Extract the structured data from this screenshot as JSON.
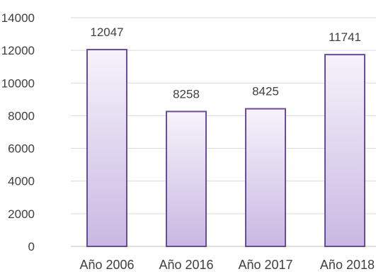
{
  "chart_data": {
    "type": "bar",
    "categories": [
      "Año 2006",
      "Año 2016",
      "Año 2017",
      "Año 2018"
    ],
    "values": [
      12047,
      8258,
      8425,
      11741
    ],
    "data_labels": [
      "12047",
      "8258",
      "8425",
      "11741"
    ],
    "title": "",
    "xlabel": "",
    "ylabel": "",
    "ylim": [
      0,
      14000
    ],
    "yticks": [
      0,
      2000,
      4000,
      6000,
      8000,
      10000,
      12000,
      14000
    ],
    "ytick_labels": [
      "0",
      "2000",
      "4000",
      "6000",
      "8000",
      "10000",
      "12000",
      "14000"
    ],
    "grid": true,
    "legend": "none",
    "colors": {
      "bar_top": "#f6f3fb",
      "bar_bottom": "#c9b8e2",
      "bar_border": "#6b4c98",
      "grid": "#d9d9d9",
      "axis": "#bfbfbf",
      "text": "#404040"
    }
  }
}
